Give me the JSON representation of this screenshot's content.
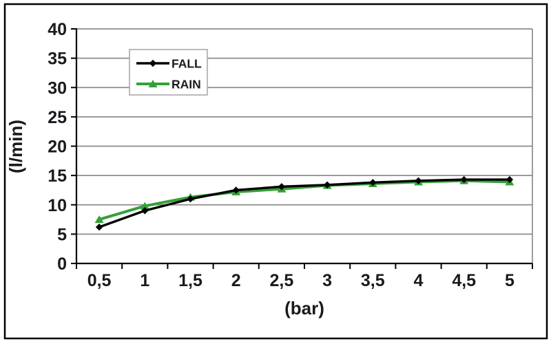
{
  "frame": {
    "background_color": "#ffffff",
    "border_color": "#000000"
  },
  "chart_data": {
    "type": "line",
    "title": "",
    "xlabel": "(bar)",
    "ylabel": "(l/min)",
    "x_values": [
      0.5,
      1,
      1.5,
      2,
      2.5,
      3,
      3.5,
      4,
      4.5,
      5
    ],
    "x_tick_labels": [
      "0,5",
      "1",
      "1,5",
      "2",
      "2,5",
      "3",
      "3,5",
      "4",
      "4,5",
      "5"
    ],
    "ylim": [
      0,
      40
    ],
    "y_tick_step": 5,
    "y_tick_labels": [
      "0",
      "5",
      "10",
      "15",
      "20",
      "25",
      "30",
      "35",
      "40"
    ],
    "grid": "horizontal-only",
    "decimal_separator": ",",
    "legend_position": "upper-left-inside",
    "series": [
      {
        "name": "FALL",
        "color": "#000000",
        "marker": "diamond",
        "values": [
          6.2,
          9.0,
          11.0,
          12.5,
          13.1,
          13.4,
          13.8,
          14.1,
          14.3,
          14.3
        ]
      },
      {
        "name": "RAIN",
        "color": "#35a038",
        "marker": "triangle-up",
        "values": [
          7.5,
          9.8,
          11.3,
          12.2,
          12.7,
          13.3,
          13.6,
          13.9,
          14.1,
          13.9
        ]
      }
    ],
    "colors": {
      "gridline": "#8c8c8c",
      "axis": "#000000",
      "tick_text": "#1a1a1e",
      "legend_border": "#a8a8a8",
      "legend_background": "#ffffff"
    }
  }
}
